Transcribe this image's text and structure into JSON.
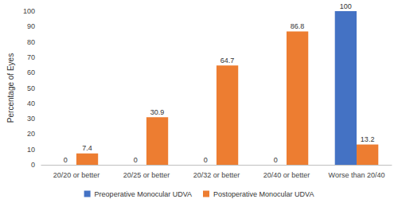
{
  "chart_data": {
    "type": "bar",
    "categories": [
      "20/20 or better",
      "20/25 or better",
      "20/32 or better",
      "20/40 or better",
      "Worse than 20/40"
    ],
    "series": [
      {
        "name": "Preoperative Monocular UDVA",
        "color": "#4472c4",
        "values": [
          0,
          0,
          0,
          0,
          100
        ]
      },
      {
        "name": "Postoperative Monocular UDVA",
        "color": "#ed7d31",
        "values": [
          7.4,
          30.9,
          64.7,
          86.8,
          13.2
        ]
      }
    ],
    "y_label": "Percentage of Eyes",
    "ylim": [
      0,
      100
    ],
    "yticks": [
      0,
      10,
      20,
      30,
      40,
      50,
      60,
      70,
      80,
      90,
      100
    ],
    "grid": false,
    "legend": "bottom",
    "data_labels": true
  }
}
